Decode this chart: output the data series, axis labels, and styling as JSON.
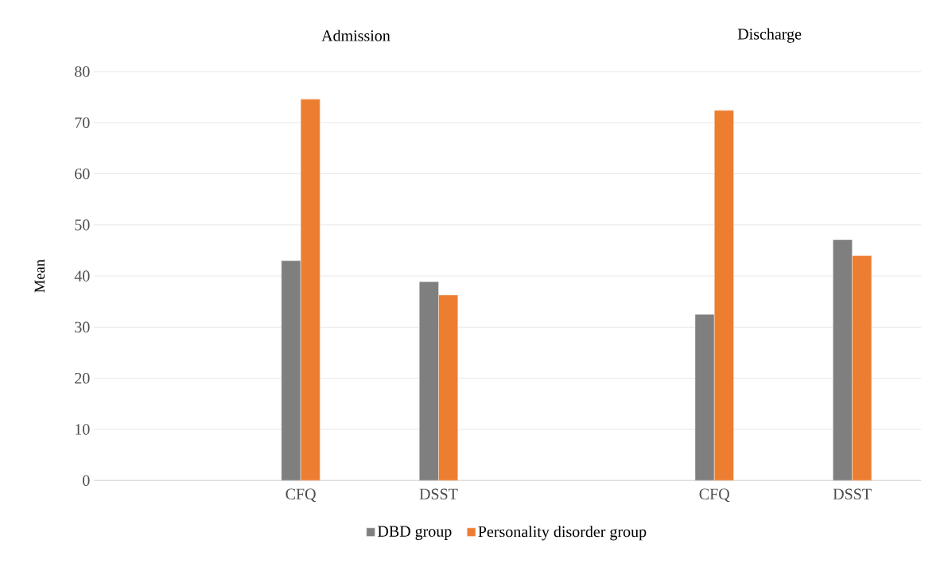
{
  "chart_data": {
    "type": "bar",
    "categories": [
      null,
      "CFQ",
      "DSST",
      null,
      "CFQ",
      "DSST"
    ],
    "series": [
      {
        "name": "DBD group",
        "color": "#7f7f7f",
        "values": [
          null,
          43,
          38.9,
          null,
          32.5,
          47.1
        ]
      },
      {
        "name": "Personality disorder  group",
        "color": "#ed7d31",
        "values": [
          null,
          74.6,
          36.3,
          null,
          72.4,
          44
        ]
      }
    ],
    "ylabel": "Mean",
    "ylim": [
      0,
      80
    ],
    "yticks": [
      0,
      10,
      20,
      30,
      40,
      50,
      60,
      70,
      80
    ],
    "grid": "y",
    "legend": "bottom",
    "annotations": [
      {
        "text": "Admission"
      },
      {
        "text": "Discharge"
      }
    ]
  }
}
